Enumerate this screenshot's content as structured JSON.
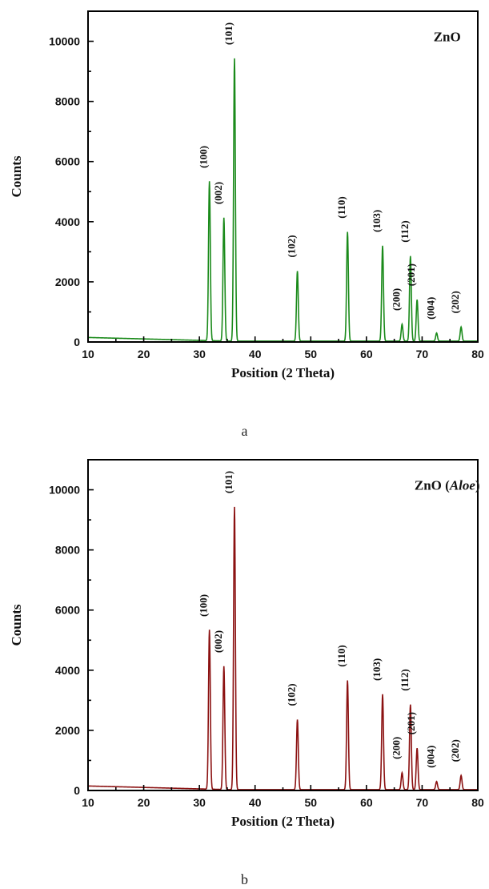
{
  "captions": {
    "a": "a",
    "b": "b"
  },
  "chart_data": [
    {
      "type": "line",
      "title": "ZnO",
      "title_parts": [
        {
          "text": "ZnO",
          "italic": false
        }
      ],
      "xlabel": "Position (2 Theta)",
      "ylabel": "Counts",
      "xlim": [
        10,
        80
      ],
      "ylim": [
        0,
        11000
      ],
      "xticks": [
        10,
        20,
        30,
        40,
        50,
        60,
        70,
        80
      ],
      "yticks": [
        0,
        2000,
        4000,
        6000,
        8000,
        10000
      ],
      "color": "#1a8a1a",
      "baseline": {
        "start": 150,
        "end": 30
      },
      "peaks": [
        {
          "x": 31.8,
          "y": 5300,
          "label": "(100)"
        },
        {
          "x": 34.4,
          "y": 4100,
          "label": "(002)"
        },
        {
          "x": 36.3,
          "y": 9400,
          "label": "(101)"
        },
        {
          "x": 47.6,
          "y": 2330,
          "label": "(102)"
        },
        {
          "x": 56.6,
          "y": 3630,
          "label": "(110)"
        },
        {
          "x": 62.9,
          "y": 3170,
          "label": "(103)"
        },
        {
          "x": 66.4,
          "y": 560,
          "label": "(200)"
        },
        {
          "x": 67.9,
          "y": 2830,
          "label": "(112)"
        },
        {
          "x": 69.1,
          "y": 1380,
          "label": "(201)"
        },
        {
          "x": 72.6,
          "y": 270,
          "label": "(004)"
        },
        {
          "x": 77.0,
          "y": 470,
          "label": "(202)"
        }
      ]
    },
    {
      "type": "line",
      "title": "ZnO (Aloe)",
      "title_parts": [
        {
          "text": "ZnO (",
          "italic": false
        },
        {
          "text": "Aloe",
          "italic": true
        },
        {
          "text": ")",
          "italic": false
        }
      ],
      "xlabel": "Position (2 Theta)",
      "ylabel": "Counts",
      "xlim": [
        10,
        80
      ],
      "ylim": [
        0,
        11000
      ],
      "xticks": [
        10,
        20,
        30,
        40,
        50,
        60,
        70,
        80
      ],
      "yticks": [
        0,
        2000,
        4000,
        6000,
        8000,
        10000
      ],
      "color": "#8b1111",
      "baseline": {
        "start": 150,
        "end": 30
      },
      "peaks": [
        {
          "x": 31.8,
          "y": 5300,
          "label": "(100)"
        },
        {
          "x": 34.4,
          "y": 4100,
          "label": "(002)"
        },
        {
          "x": 36.3,
          "y": 9400,
          "label": "(101)"
        },
        {
          "x": 47.6,
          "y": 2330,
          "label": "(102)"
        },
        {
          "x": 56.6,
          "y": 3630,
          "label": "(110)"
        },
        {
          "x": 62.9,
          "y": 3170,
          "label": "(103)"
        },
        {
          "x": 66.4,
          "y": 560,
          "label": "(200)"
        },
        {
          "x": 67.9,
          "y": 2830,
          "label": "(112)"
        },
        {
          "x": 69.1,
          "y": 1380,
          "label": "(201)"
        },
        {
          "x": 72.6,
          "y": 270,
          "label": "(004)"
        },
        {
          "x": 77.0,
          "y": 470,
          "label": "(202)"
        }
      ]
    }
  ]
}
